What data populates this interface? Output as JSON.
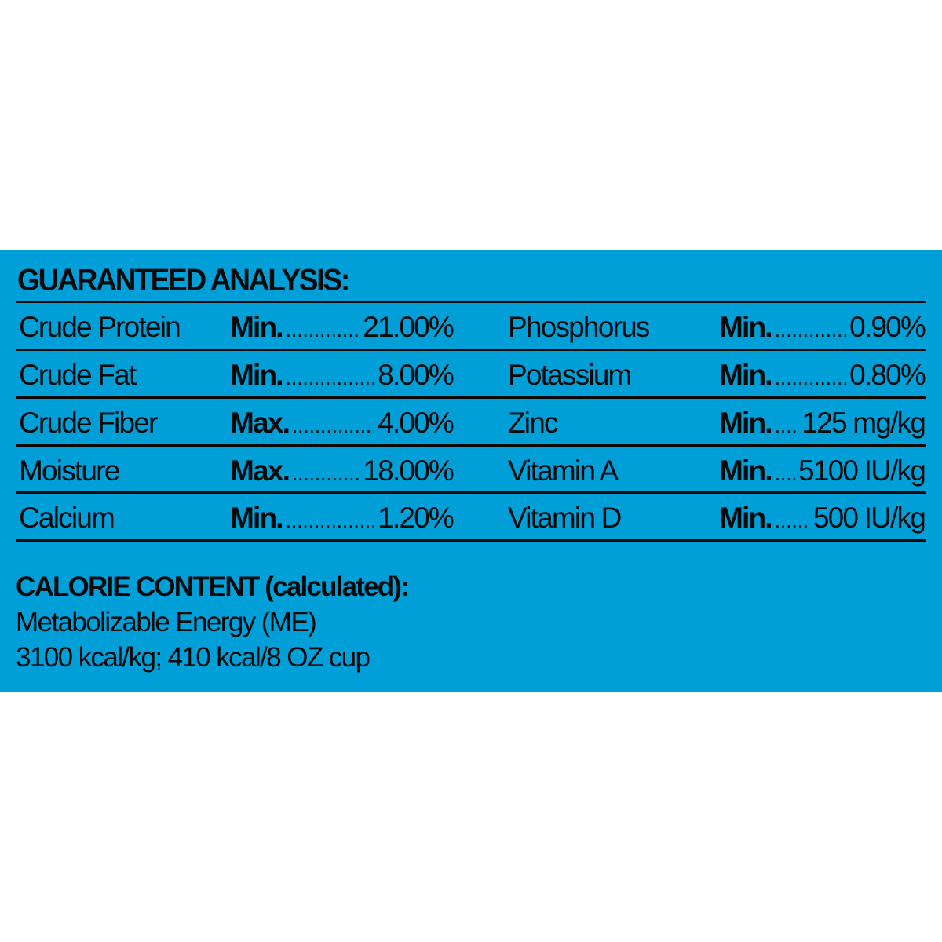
{
  "colors": {
    "panel": "#009fd8",
    "text": "#0a0a0a"
  },
  "analysis": {
    "title": "GUARANTEED ANALYSIS:",
    "left": [
      {
        "name": "Crude Protein",
        "label": "Min.",
        "value": "21.00%"
      },
      {
        "name": "Crude Fat",
        "label": "Min.",
        "value": "8.00%"
      },
      {
        "name": "Crude Fiber",
        "label": "Max.",
        "value": "4.00%"
      },
      {
        "name": "Moisture",
        "label": "Max.",
        "value": "18.00%"
      },
      {
        "name": "Calcium",
        "label": "Min.",
        "value": "1.20%"
      }
    ],
    "right": [
      {
        "name": "Phosphorus",
        "label": "Min.",
        "value": "0.90%"
      },
      {
        "name": "Potassium",
        "label": "Min.",
        "value": "0.80%"
      },
      {
        "name": "Zinc",
        "label": "Min.",
        "value": "125 mg/kg"
      },
      {
        "name": "Vitamin A",
        "label": "Min.",
        "value": "5100 IU/kg"
      },
      {
        "name": "Vitamin D",
        "label": "Min.",
        "value": "500 IU/kg"
      }
    ]
  },
  "calorie": {
    "title": "CALORIE CONTENT (calculated):",
    "line1": "Metabolizable Energy (ME)",
    "line2": "3100 kcal/kg; 410 kcal/8 OZ cup"
  }
}
